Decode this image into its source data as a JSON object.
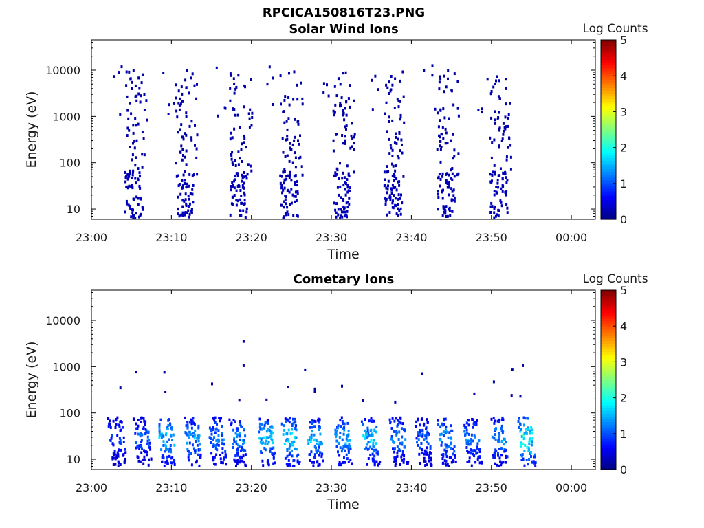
{
  "figure_title": "RPCICA150816T23.PNG",
  "chart_data": [
    {
      "type": "heatmap",
      "title": "Solar Wind Ions",
      "xlabel": "Time",
      "ylabel": "Energy (eV)",
      "x_ticks": [
        "23:00",
        "23:10",
        "23:20",
        "23:30",
        "23:40",
        "23:50",
        "00:00"
      ],
      "x_range": [
        "23:00",
        "00:03"
      ],
      "y_scale": "log",
      "y_ticks": [
        10,
        100,
        1000,
        10000
      ],
      "y_range": [
        6,
        45000
      ],
      "colorbar": {
        "label": "Log Counts",
        "ticks": [
          0,
          1,
          2,
          3,
          4,
          5
        ],
        "range": [
          0,
          5
        ],
        "colormap": "jet"
      },
      "sweep_times_min": [
        5.2,
        11.5,
        18.3,
        24.6,
        31.2,
        37.6,
        44.2,
        50.8
      ],
      "sweep_log_counts": 0.2,
      "notes": "Sparse single-count pixels at 1000–10000 eV, denser clusters at 10–60 eV during each energy sweep"
    },
    {
      "type": "heatmap",
      "title": "Cometary Ions",
      "xlabel": "Time",
      "ylabel": "Energy (eV)",
      "x_ticks": [
        "23:00",
        "23:10",
        "23:20",
        "23:30",
        "23:40",
        "23:50",
        "00:00"
      ],
      "x_range": [
        "23:00",
        "00:03"
      ],
      "y_scale": "log",
      "y_ticks": [
        10,
        100,
        1000,
        10000
      ],
      "y_range": [
        6,
        45000
      ],
      "colorbar": {
        "label": "Log Counts",
        "ticks": [
          0,
          1,
          2,
          3,
          4,
          5
        ],
        "range": [
          0,
          5
        ],
        "colormap": "jet"
      },
      "bursts": [
        {
          "t": 2.8,
          "peak_log_counts": 1.0
        },
        {
          "t": 6.0,
          "peak_log_counts": 1.2
        },
        {
          "t": 9.0,
          "peak_log_counts": 1.8
        },
        {
          "t": 12.3,
          "peak_log_counts": 1.6
        },
        {
          "t": 15.3,
          "peak_log_counts": 1.4
        },
        {
          "t": 18.0,
          "peak_log_counts": 1.5
        },
        {
          "t": 21.5,
          "peak_log_counts": 1.8
        },
        {
          "t": 24.5,
          "peak_log_counts": 1.9
        },
        {
          "t": 27.5,
          "peak_log_counts": 1.7
        },
        {
          "t": 31.0,
          "peak_log_counts": 1.7
        },
        {
          "t": 34.5,
          "peak_log_counts": 1.8
        },
        {
          "t": 38.0,
          "peak_log_counts": 1.4
        },
        {
          "t": 41.0,
          "peak_log_counts": 1.2
        },
        {
          "t": 44.0,
          "peak_log_counts": 1.6
        },
        {
          "t": 47.2,
          "peak_log_counts": 1.4
        },
        {
          "t": 50.5,
          "peak_log_counts": 1.5
        },
        {
          "t": 54.0,
          "peak_log_counts": 2.3
        }
      ]
    }
  ]
}
